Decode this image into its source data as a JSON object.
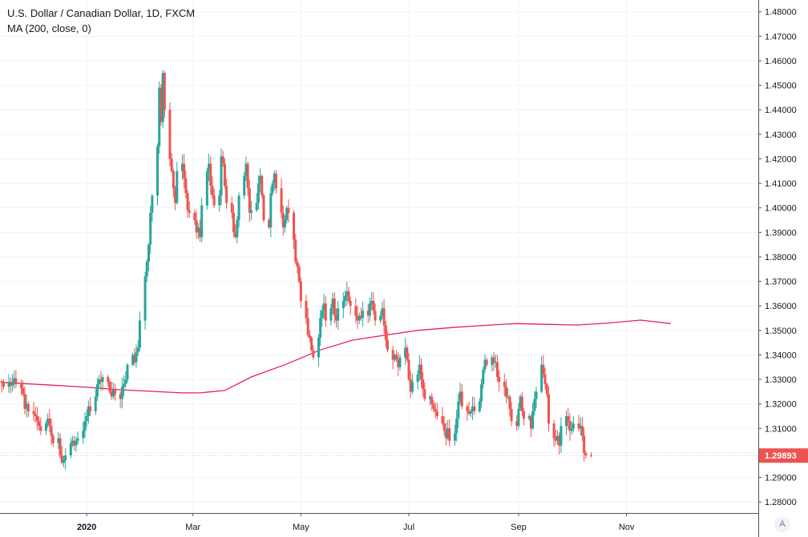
{
  "chart_data": {
    "type": "candlestick",
    "title": "U.S. Dollar / Canadian Dollar, 1D, FXCM",
    "indicator_label": "MA (200, close, 0)",
    "x_ticks": [
      "2020",
      "Mar",
      "May",
      "Jul",
      "Sep",
      "Nov"
    ],
    "y_ticks": [
      "1.28000",
      "1.29000",
      "1.30000",
      "1.31000",
      "1.32000",
      "1.33000",
      "1.34000",
      "1.35000",
      "1.36000",
      "1.37000",
      "1.38000",
      "1.39000",
      "1.40000",
      "1.41000",
      "1.42000",
      "1.43000",
      "1.44000",
      "1.45000",
      "1.46000",
      "1.47000",
      "1.48000"
    ],
    "ylim": [
      1.2755,
      1.4848
    ],
    "last_price": "1.29893",
    "colors": {
      "up": "#26a69a",
      "down": "#ef5350",
      "ma": "#e91e63",
      "grid": "#f0f3fa",
      "axis": "#50535e",
      "last_price_bg": "#ef5350"
    },
    "close_series": {
      "start": "2019-11-14",
      "values": [
        1.3285,
        1.327,
        1.329,
        1.3275,
        1.329,
        1.3305,
        1.328,
        1.3265,
        1.324,
        1.318,
        1.32,
        1.317,
        1.316,
        1.315,
        1.313,
        1.311,
        1.309,
        1.312,
        1.314,
        1.311,
        1.307,
        1.304,
        1.306,
        1.299,
        1.296,
        1.297,
        1.299,
        1.304,
        1.305,
        1.303,
        1.305,
        1.306,
        1.309,
        1.313,
        1.315,
        1.319,
        1.317,
        1.323,
        1.328,
        1.33,
        1.329,
        1.331,
        1.329,
        1.325,
        1.323,
        1.326,
        1.324,
        1.322,
        1.327,
        1.328,
        1.33,
        1.336,
        1.34,
        1.337,
        1.341,
        1.343,
        1.354,
        1.372,
        1.378,
        1.385,
        1.398,
        1.405,
        1.425,
        1.449,
        1.435,
        1.455,
        1.44,
        1.42,
        1.415,
        1.408,
        1.402,
        1.415,
        1.418,
        1.412,
        1.406,
        1.399,
        1.398,
        1.395,
        1.39,
        1.392,
        1.388,
        1.401,
        1.415,
        1.418,
        1.409,
        1.405,
        1.401,
        1.405,
        1.421,
        1.418,
        1.409,
        1.402,
        1.398,
        1.39,
        1.388,
        1.395,
        1.405,
        1.413,
        1.418,
        1.408,
        1.398,
        1.399,
        1.402,
        1.41,
        1.413,
        1.405,
        1.395,
        1.392,
        1.406,
        1.41,
        1.414,
        1.408,
        1.398,
        1.392,
        1.395,
        1.4,
        1.398,
        1.387,
        1.378,
        1.376,
        1.37,
        1.362,
        1.355,
        1.348,
        1.347,
        1.342,
        1.339,
        1.347,
        1.355,
        1.358,
        1.361,
        1.354,
        1.359,
        1.363,
        1.356,
        1.354,
        1.359,
        1.362,
        1.364,
        1.366,
        1.362,
        1.36,
        1.356,
        1.354,
        1.356,
        1.355,
        1.358,
        1.356,
        1.361,
        1.362,
        1.358,
        1.354,
        1.356,
        1.359,
        1.352,
        1.346,
        1.342,
        1.338,
        1.34,
        1.338,
        1.335,
        1.339,
        1.343,
        1.338,
        1.33,
        1.325,
        1.329,
        1.332,
        1.336,
        1.33,
        1.326,
        1.322,
        1.323,
        1.32,
        1.318,
        1.317,
        1.315,
        1.312,
        1.309,
        1.306,
        1.31,
        1.305,
        1.308,
        1.314,
        1.321,
        1.325,
        1.319,
        1.317,
        1.316,
        1.317,
        1.319,
        1.317,
        1.321,
        1.328,
        1.334,
        1.338,
        1.336,
        1.339,
        1.337,
        1.337,
        1.331,
        1.329,
        1.327,
        1.323,
        1.323,
        1.318,
        1.313,
        1.311,
        1.318,
        1.323,
        1.317,
        1.314,
        1.315,
        1.31,
        1.317,
        1.322,
        1.325,
        1.336,
        1.332,
        1.328,
        1.324,
        1.312,
        1.306,
        1.305,
        1.307,
        1.303,
        1.311,
        1.315,
        1.313,
        1.309,
        1.31,
        1.312,
        1.31,
        1.311,
        1.307,
        1.3,
        1.299,
        1.2989
      ]
    },
    "ma_series": {
      "x": [
        "2019-11-14",
        "2019-12-09",
        "2020-01-01",
        "2020-01-20",
        "2020-02-10",
        "2020-02-24",
        "2020-03-05",
        "2020-03-19",
        "2020-04-03",
        "2020-04-22",
        "2020-05-12",
        "2020-05-30",
        "2020-06-17",
        "2020-07-06",
        "2020-07-26",
        "2020-08-16",
        "2020-08-31",
        "2020-09-16",
        "2020-10-04",
        "2020-10-22",
        "2020-11-09",
        "2020-11-26"
      ],
      "values": [
        1.3288,
        1.3278,
        1.3268,
        1.3258,
        1.325,
        1.3245,
        1.3245,
        1.3255,
        1.331,
        1.336,
        1.342,
        1.346,
        1.348,
        1.35,
        1.3512,
        1.3522,
        1.3528,
        1.3525,
        1.3522,
        1.353,
        1.3542,
        1.3528
      ]
    }
  },
  "ui": {
    "auto_scale_label": "A"
  }
}
